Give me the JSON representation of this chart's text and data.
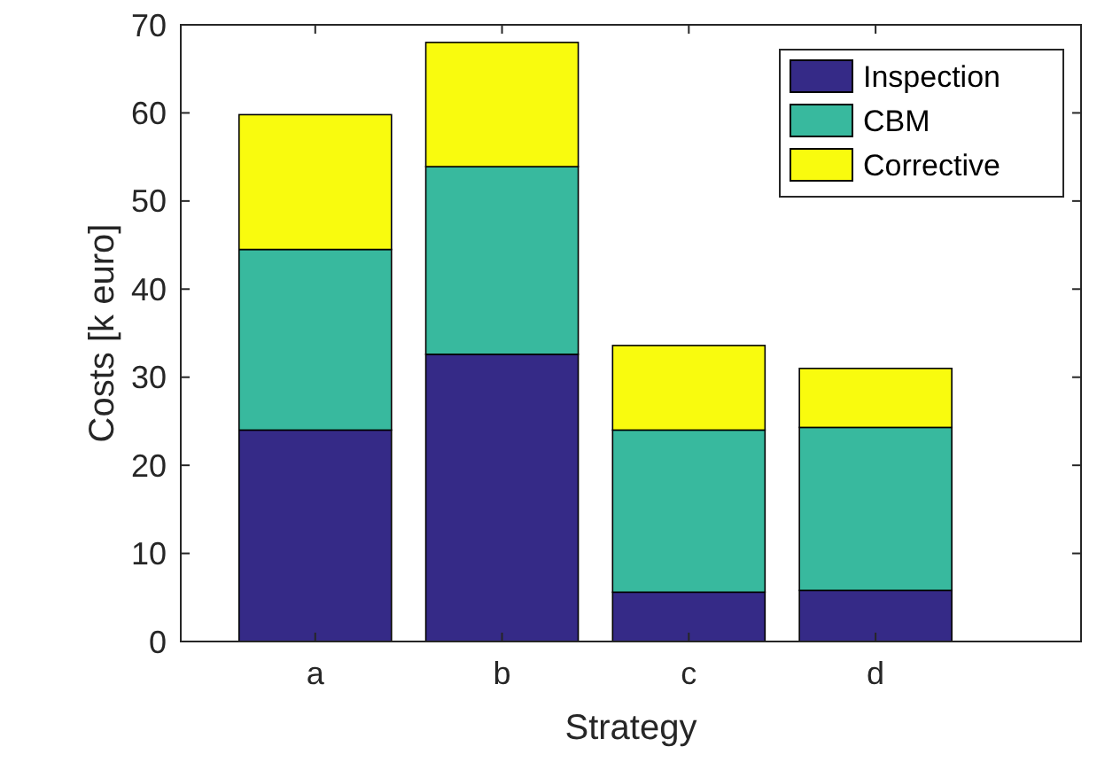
{
  "chart_data": {
    "type": "bar",
    "stacked": true,
    "xlabel": "Strategy",
    "ylabel": "Costs [k euro]",
    "categories": [
      "a",
      "b",
      "c",
      "d"
    ],
    "series": [
      {
        "name": "Inspection",
        "color": "#352a87",
        "values": [
          24,
          32.6,
          5.6,
          5.8
        ]
      },
      {
        "name": "CBM",
        "color": "#38b99e",
        "values": [
          20.5,
          21.3,
          18.4,
          18.5
        ]
      },
      {
        "name": "Corrective",
        "color": "#f9fb0e",
        "values": [
          15.3,
          14.1,
          9.6,
          6.7
        ]
      }
    ],
    "ylim": [
      0,
      70
    ],
    "yticks": [
      0,
      10,
      20,
      30,
      40,
      50,
      60,
      70
    ],
    "legend": "top right",
    "grid": false
  }
}
